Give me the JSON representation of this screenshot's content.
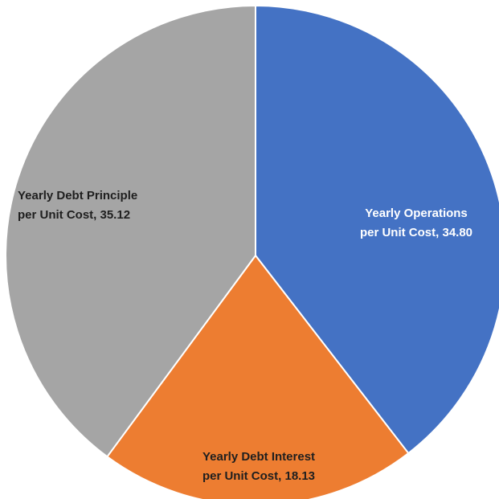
{
  "chart_data": {
    "type": "pie",
    "title": "",
    "start_angle_deg": 0,
    "direction": "clockwise",
    "slices": [
      {
        "label_lines": [
          "Yearly Operations",
          "per Unit Cost, 34.80"
        ],
        "category": "Yearly Operations per Unit Cost",
        "value": 34.8,
        "color": "#4472C4",
        "label_color": "#FFFFFF"
      },
      {
        "label_lines": [
          "Yearly Debt Interest",
          "per Unit Cost, 18.13"
        ],
        "category": "Yearly Debt Interest per Unit Cost",
        "value": 18.13,
        "color": "#ED7D31",
        "label_color": "#1F1F1F"
      },
      {
        "label_lines": [
          "Yearly Debt Principle",
          "per Unit Cost, 35.12"
        ],
        "category": "Yearly Debt Principle per Unit Cost",
        "value": 35.12,
        "color": "#A5A5A5",
        "label_color": "#1F1F1F"
      }
    ],
    "legend": "none",
    "data_labels": "inside"
  }
}
